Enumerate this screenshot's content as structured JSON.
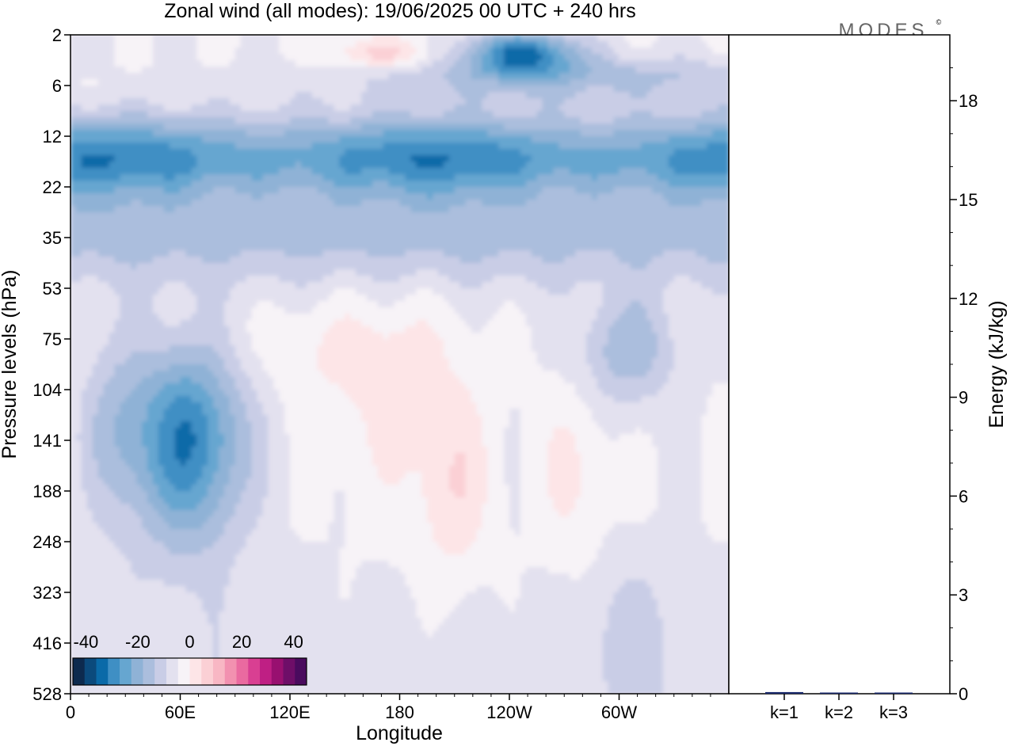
{
  "chart_data": [
    {
      "type": "heatmap",
      "title": "Zonal wind (all modes):  19/06/2025  00 UTC  + 240 hrs",
      "xlabel": "Longitude",
      "ylabel": "Pressure levels (hPa)",
      "x_ticks": [
        "0",
        "60E",
        "120E",
        "180",
        "120W",
        "60W"
      ],
      "x_range": [
        0,
        360
      ],
      "y_ticks": [
        "2",
        "6",
        "12",
        "22",
        "35",
        "53",
        "75",
        "104",
        "141",
        "188",
        "248",
        "323",
        "416",
        "528"
      ],
      "colorbar": {
        "tick_labels": [
          "-40",
          "-20",
          "0",
          "20",
          "40"
        ],
        "range": [
          -45,
          45
        ],
        "step": 5,
        "colors": [
          "#0d2a4e",
          "#0b4a7c",
          "#0a6aa8",
          "#3f8fc4",
          "#66a6d0",
          "#8fb2d6",
          "#abbedd",
          "#c9cde6",
          "#e3e1ef",
          "#f7f3f7",
          "#fde5e7",
          "#fbd0d5",
          "#f8b7c4",
          "#f291b0",
          "#ea6aa0",
          "#d93f92",
          "#bf1f84",
          "#981070",
          "#6e0e68",
          "#4a0b5e"
        ]
      },
      "field_description": [
        {
          "feature": "easterly jet",
          "lon_range": [
            0,
            360
          ],
          "hPa_range": [
            9,
            28
          ],
          "value": -30
        },
        {
          "feature": "upper easterly core",
          "lon_range": [
            225,
            270
          ],
          "hPa": 3,
          "value": -30
        },
        {
          "feature": "upper westerly",
          "lon_range": [
            150,
            190
          ],
          "hPa": 3,
          "value": 12
        },
        {
          "feature": "tropical easterly jet core",
          "lon": 65,
          "hPa": 141,
          "value": -30
        },
        {
          "feature": "westerly patches",
          "lon_range": [
            150,
            320
          ],
          "hPa_range": [
            75,
            250
          ],
          "value": 5
        }
      ]
    },
    {
      "type": "bar",
      "ylabel": "Energy (kJ/kg)",
      "categories": [
        "k=1",
        "k=2",
        "k=3"
      ],
      "values": [
        0.05,
        0.03,
        0.02
      ],
      "ylim": [
        0,
        20
      ],
      "y_ticks": [
        "0",
        "3",
        "6",
        "9",
        "12",
        "15",
        "18"
      ]
    }
  ],
  "brand": "MODES",
  "brand_mark": "©"
}
